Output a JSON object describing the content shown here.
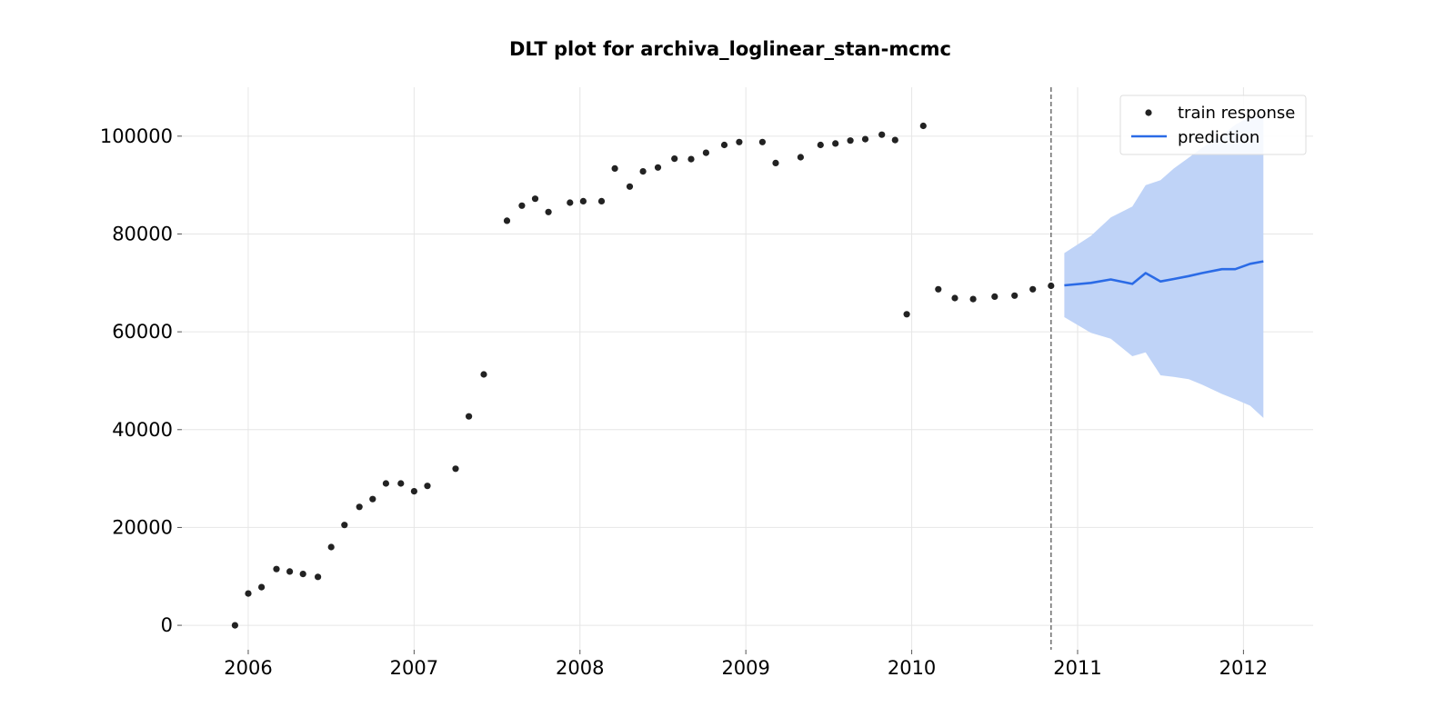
{
  "chart_data": {
    "type": "scatter",
    "title": "DLT plot for archiva_loglinear_stan-mcmc",
    "xlabel": "",
    "ylabel": "",
    "x_ticks": [
      "2006",
      "2007",
      "2008",
      "2009",
      "2010",
      "2011",
      "2012"
    ],
    "y_ticks": [
      "0",
      "20000",
      "40000",
      "60000",
      "80000",
      "100000"
    ],
    "xlim": [
      2005.6,
      2012.42
    ],
    "ylim": [
      -5000,
      110000
    ],
    "grid": true,
    "legend_position": "top-right",
    "train_cutoff": 2010.84,
    "colors": {
      "train": "#222222",
      "prediction": "#2b6be6",
      "band": "#bfd3f7",
      "cutoff": "#777777"
    },
    "series": [
      {
        "name": "train response",
        "kind": "scatter",
        "x": [
          2005.92,
          2006.0,
          2006.08,
          2006.17,
          2006.25,
          2006.33,
          2006.42,
          2006.5,
          2006.58,
          2006.67,
          2006.75,
          2006.83,
          2006.92,
          2007.0,
          2007.08,
          2007.25,
          2007.33,
          2007.42,
          2007.56,
          2007.65,
          2007.73,
          2007.81,
          2007.94,
          2008.02,
          2008.13,
          2008.21,
          2008.3,
          2008.38,
          2008.47,
          2008.57,
          2008.67,
          2008.76,
          2008.87,
          2008.96,
          2009.1,
          2009.18,
          2009.33,
          2009.45,
          2009.54,
          2009.63,
          2009.72,
          2009.82,
          2009.9,
          2009.97,
          2010.07,
          2010.16,
          2010.26,
          2010.37,
          2010.5,
          2010.62,
          2010.73,
          2010.84
        ],
        "values": [
          0,
          6500,
          7800,
          11500,
          11000,
          10500,
          9900,
          16000,
          20500,
          24200,
          25800,
          29000,
          29000,
          27400,
          28500,
          32000,
          42700,
          51300,
          82700,
          85800,
          87200,
          84500,
          86400,
          86700,
          86700,
          93400,
          89700,
          92800,
          93600,
          95400,
          95300,
          96600,
          98200,
          98800,
          98800,
          94500,
          95700,
          98200,
          98500,
          99100,
          99400,
          100300,
          99200,
          63600,
          102100,
          68700,
          66900,
          66700,
          67200,
          67400,
          68700,
          69400
        ]
      },
      {
        "name": "prediction",
        "kind": "line",
        "x": [
          2010.92,
          2011.08,
          2011.2,
          2011.33,
          2011.41,
          2011.5,
          2011.58,
          2011.67,
          2011.75,
          2011.87,
          2011.95,
          2012.04,
          2012.12
        ],
        "values": [
          69500,
          70000,
          70700,
          69800,
          72000,
          70300,
          70800,
          71400,
          72000,
          72800,
          72800,
          73900,
          74400
        ],
        "lower": [
          63000,
          59800,
          58600,
          55000,
          55800,
          51100,
          50800,
          50300,
          49200,
          47300,
          46200,
          44900,
          42400
        ],
        "upper": [
          76100,
          79600,
          83400,
          85600,
          90000,
          91000,
          93400,
          95600,
          97600,
          100200,
          102300,
          104000,
          104200
        ]
      }
    ]
  }
}
